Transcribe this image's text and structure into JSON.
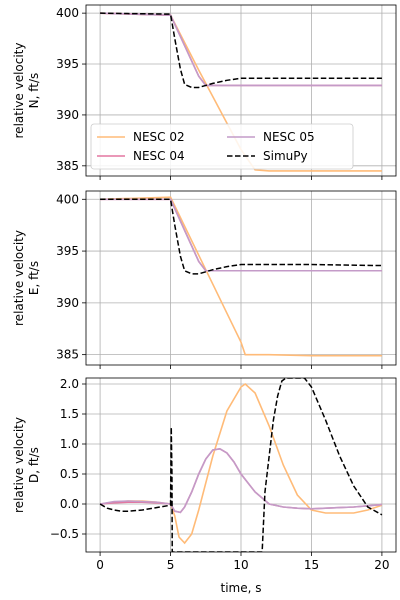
{
  "chart_data": {
    "type": "line",
    "xlabel": "time, s",
    "x_ticks": [
      0,
      5,
      10,
      15,
      20
    ],
    "xlim": [
      -1,
      21
    ],
    "series_styles": [
      {
        "name": "NESC 02",
        "color": "#ffbb78",
        "dash": "solid"
      },
      {
        "name": "NESC 04",
        "color": "#e377a0",
        "dash": "solid"
      },
      {
        "name": "NESC 05",
        "color": "#c49bc8",
        "dash": "solid"
      },
      {
        "name": "SimuPy",
        "color": "#000000",
        "dash": "dashed"
      }
    ],
    "panels": [
      {
        "ylabel": [
          "relative velocity",
          "N, ft/s"
        ],
        "ylim": [
          384,
          400.8
        ],
        "y_ticks": [
          385,
          390,
          395,
          400
        ],
        "legend": "lower-left",
        "series": [
          {
            "name": "NESC 02",
            "x": [
              0,
              5,
              6,
              7,
              8,
              9,
              10,
              11,
              12,
              15,
              20
            ],
            "values": [
              400,
              399.8,
              397.1,
              394.4,
              391.8,
              389.2,
              386.6,
              384.6,
              384.5,
              384.5,
              384.5
            ]
          },
          {
            "name": "NESC 04",
            "x": [
              0,
              5,
              6,
              7,
              7.5,
              10,
              15,
              20
            ],
            "values": [
              400,
              399.8,
              396.8,
              393.8,
              392.9,
              392.9,
              392.9,
              392.9
            ]
          },
          {
            "name": "NESC 05",
            "x": [
              0,
              5,
              6,
              7,
              7.5,
              10,
              15,
              20
            ],
            "values": [
              400,
              399.8,
              396.8,
              393.8,
              392.9,
              392.9,
              392.9,
              392.9
            ]
          },
          {
            "name": "SimuPy",
            "x": [
              0,
              5,
              5.3,
              5.7,
              6,
              6.5,
              7,
              7.5,
              8,
              9,
              10,
              12,
              15,
              20
            ],
            "values": [
              400,
              399.9,
              397.5,
              394.5,
              393,
              392.7,
              392.7,
              392.9,
              393.1,
              393.4,
              393.6,
              393.6,
              393.6,
              393.6
            ]
          }
        ]
      },
      {
        "ylabel": [
          "relative velocity",
          "E, ft/s"
        ],
        "ylim": [
          384,
          400.8
        ],
        "y_ticks": [
          385,
          390,
          395,
          400
        ],
        "series": [
          {
            "name": "NESC 02",
            "x": [
              0,
              5,
              6,
              7,
              8,
              9,
              10,
              10.3,
              12,
              15,
              20
            ],
            "values": [
              400,
              400.2,
              397.4,
              394.6,
              391.8,
              389,
              386.2,
              385,
              385,
              384.9,
              384.9
            ]
          },
          {
            "name": "NESC 04",
            "x": [
              0,
              5,
              6,
              7,
              7.5,
              10,
              15,
              20
            ],
            "values": [
              400,
              400,
              397,
              394,
              393.1,
              393.1,
              393.1,
              393.1
            ]
          },
          {
            "name": "NESC 05",
            "x": [
              0,
              5,
              6,
              7,
              7.5,
              10,
              15,
              20
            ],
            "values": [
              400,
              400,
              397,
              394,
              393.1,
              393.1,
              393.1,
              393.1
            ]
          },
          {
            "name": "SimuPy",
            "x": [
              0,
              5,
              5.3,
              5.7,
              6,
              6.5,
              7,
              7.5,
              8,
              9,
              10,
              12,
              15,
              20
            ],
            "values": [
              400,
              400,
              397.5,
              394.5,
              393.1,
              392.8,
              392.8,
              393,
              393.2,
              393.5,
              393.7,
              393.7,
              393.7,
              393.6
            ]
          }
        ]
      },
      {
        "ylabel": [
          "relative velocity",
          "D, ft/s"
        ],
        "ylim": [
          -0.8,
          2.1
        ],
        "y_ticks": [
          -0.5,
          0.0,
          0.5,
          1.0,
          1.5,
          2.0
        ],
        "y_tick_labels": [
          "−0.5",
          "0.0",
          "0.5",
          "1.0",
          "1.5",
          "2.0"
        ],
        "series": [
          {
            "name": "NESC 02",
            "x": [
              0,
              1,
              2,
              3,
              4,
              5,
              5.3,
              5.6,
              6,
              6.5,
              7,
              8,
              9,
              10,
              10.3,
              11,
              12,
              13,
              14,
              15,
              16,
              17,
              18,
              19,
              20
            ],
            "values": [
              0,
              0.03,
              0.05,
              0.05,
              0.03,
              0,
              -0.2,
              -0.55,
              -0.65,
              -0.5,
              -0.1,
              0.8,
              1.55,
              1.95,
              2.0,
              1.85,
              1.3,
              0.65,
              0.15,
              -0.1,
              -0.15,
              -0.15,
              -0.15,
              -0.1,
              -0.02
            ]
          },
          {
            "name": "NESC 04",
            "x": [
              0,
              1,
              2,
              3,
              4,
              5,
              5.3,
              5.7,
              6,
              6.5,
              7,
              7.5,
              8,
              8.5,
              9,
              9.5,
              10,
              11,
              12,
              13,
              14,
              15,
              16,
              17,
              18,
              19,
              20
            ],
            "values": [
              0,
              0.02,
              0.03,
              0.03,
              0.02,
              0,
              -0.12,
              -0.14,
              -0.05,
              0.2,
              0.5,
              0.75,
              0.9,
              0.92,
              0.85,
              0.7,
              0.5,
              0.2,
              0,
              -0.05,
              -0.07,
              -0.08,
              -0.07,
              -0.06,
              -0.05,
              -0.03,
              -0.01
            ]
          },
          {
            "name": "NESC 05",
            "x": [
              0,
              1,
              2,
              3,
              4,
              5,
              5.3,
              5.7,
              6,
              6.5,
              7,
              7.5,
              8,
              8.5,
              9,
              9.5,
              10,
              11,
              12,
              13,
              14,
              15,
              16,
              17,
              18,
              19,
              20
            ],
            "values": [
              0,
              0.04,
              0.05,
              0.04,
              0.03,
              0,
              -0.12,
              -0.14,
              -0.05,
              0.2,
              0.5,
              0.75,
              0.9,
              0.92,
              0.85,
              0.7,
              0.5,
              0.2,
              0,
              -0.05,
              -0.07,
              -0.08,
              -0.07,
              -0.06,
              -0.05,
              -0.03,
              -0.01
            ]
          },
          {
            "name": "SimuPy",
            "x": [
              0,
              0.5,
              1,
              1.5,
              2,
              3,
              4,
              5,
              5.05,
              5.1,
              5.12,
              5.2,
              11.5,
              11.7,
              12,
              12.3,
              12.6,
              12.9,
              13.2,
              14.5,
              15,
              16,
              17,
              18,
              19,
              20
            ],
            "values": [
              0,
              -0.07,
              -0.1,
              -0.12,
              -0.12,
              -0.1,
              -0.06,
              -0.02,
              1.28,
              0.5,
              -0.8,
              -0.8,
              -0.8,
              0.2,
              0.8,
              1.4,
              1.8,
              2.05,
              2.1,
              2.1,
              1.95,
              1.4,
              0.8,
              0.3,
              -0.05,
              -0.18
            ]
          }
        ]
      }
    ]
  }
}
